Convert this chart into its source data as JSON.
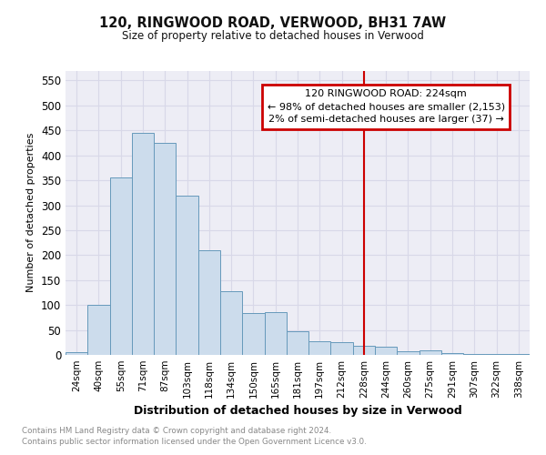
{
  "title": "120, RINGWOOD ROAD, VERWOOD, BH31 7AW",
  "subtitle": "Size of property relative to detached houses in Verwood",
  "xlabel": "Distribution of detached houses by size in Verwood",
  "ylabel": "Number of detached properties",
  "categories": [
    "24sqm",
    "40sqm",
    "55sqm",
    "71sqm",
    "87sqm",
    "103sqm",
    "118sqm",
    "134sqm",
    "150sqm",
    "165sqm",
    "181sqm",
    "197sqm",
    "212sqm",
    "228sqm",
    "244sqm",
    "260sqm",
    "275sqm",
    "291sqm",
    "307sqm",
    "322sqm",
    "338sqm"
  ],
  "values": [
    5,
    100,
    355,
    445,
    425,
    320,
    210,
    128,
    83,
    85,
    47,
    28,
    25,
    18,
    17,
    7,
    9,
    3,
    1,
    2,
    2
  ],
  "bar_color": "#ccdcec",
  "bar_edge_color": "#6699bb",
  "grid_color": "#d8d8e8",
  "ylim": [
    0,
    570
  ],
  "yticks": [
    0,
    50,
    100,
    150,
    200,
    250,
    300,
    350,
    400,
    450,
    500,
    550
  ],
  "vline_x": 13.0,
  "vline_color": "#cc0000",
  "annotation_title": "120 RINGWOOD ROAD: 224sqm",
  "annotation_line1": "← 98% of detached houses are smaller (2,153)",
  "annotation_line2": "2% of semi-detached houses are larger (37) →",
  "annotation_box_color": "#ffffff",
  "annotation_box_edge": "#cc0000",
  "footnote1": "Contains HM Land Registry data © Crown copyright and database right 2024.",
  "footnote2": "Contains public sector information licensed under the Open Government Licence v3.0.",
  "background_color": "#ededf5"
}
